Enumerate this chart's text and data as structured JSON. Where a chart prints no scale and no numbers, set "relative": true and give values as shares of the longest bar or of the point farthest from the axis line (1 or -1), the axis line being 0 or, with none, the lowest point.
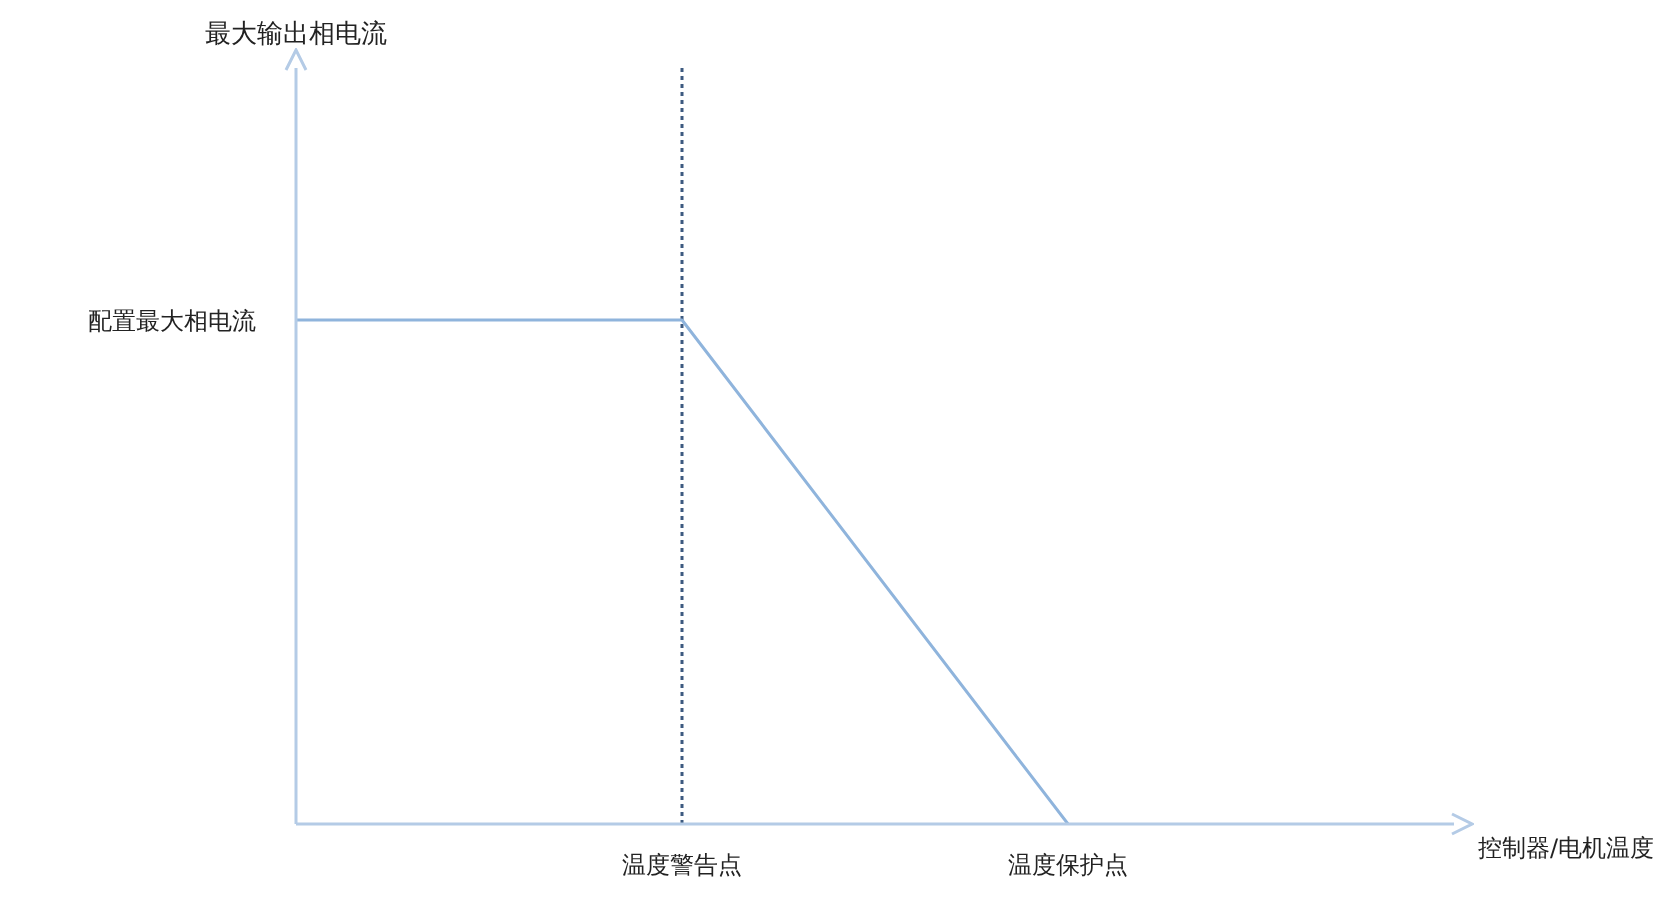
{
  "chart_data": {
    "type": "line",
    "relative": true,
    "xlabel": "控制器/电机温度",
    "categories": [
      null,
      "温度警告点",
      "温度保护点",
      null
    ],
    "series": [
      {
        "color": "#8fb4dc",
        "values": [
          1,
          1,
          0,
          null
        ]
      }
    ],
    "annotations": [
      "最大输出相电流",
      "配置最大相电流"
    ],
    "ref_lines": [
      {
        "axis": "x",
        "value": "温度警告点",
        "color": "#3d5a80",
        "line_style": "dotted"
      }
    ],
    "marker": "none",
    "line_style": "solid",
    "grid": false,
    "legend": false
  }
}
